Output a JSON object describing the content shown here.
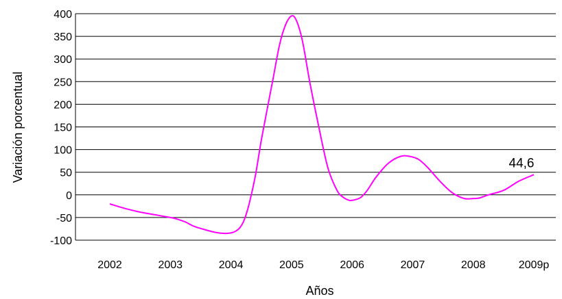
{
  "chart_data": {
    "type": "line",
    "title": "",
    "xlabel": "Años",
    "ylabel": "Variación porcentual",
    "ylim": [
      -100,
      400
    ],
    "yticks": [
      "400",
      "350",
      "300",
      "250",
      "200",
      "150",
      "100",
      "50",
      "0",
      "-50",
      "-100"
    ],
    "categories": [
      "2002",
      "2003",
      "2004",
      "2005",
      "2006",
      "2007",
      "2008",
      "2009p"
    ],
    "grid": "horizontal",
    "legend": "none",
    "series": [
      {
        "color": "#ff00ff",
        "x": [
          2002,
          2002.25,
          2002.5,
          2002.75,
          2003,
          2003.1,
          2003.25,
          2003.4,
          2003.6,
          2003.75,
          2003.9,
          2004,
          2004.08,
          2004.15,
          2004.22,
          2004.3,
          2004.4,
          2004.5,
          2004.6,
          2004.7,
          2004.8,
          2004.9,
          2005,
          2005.08,
          2005.18,
          2005.3,
          2005.45,
          2005.6,
          2005.75,
          2005.85,
          2005.95,
          2006,
          2006.07,
          2006.15,
          2006.25,
          2006.4,
          2006.6,
          2006.8,
          2006.95,
          2007.1,
          2007.25,
          2007.45,
          2007.65,
          2007.85,
          2008,
          2008.1,
          2008.25,
          2008.5,
          2008.75,
          2009
        ],
        "y": [
          -20,
          -30,
          -38,
          -44,
          -50,
          -53,
          -60,
          -70,
          -78,
          -83,
          -85,
          -84,
          -80,
          -72,
          -55,
          -20,
          40,
          120,
          190,
          260,
          330,
          375,
          395,
          385,
          340,
          250,
          150,
          60,
          10,
          -5,
          -12,
          -12,
          -10,
          -5,
          10,
          40,
          70,
          85,
          85,
          78,
          60,
          30,
          5,
          -8,
          -8,
          -7,
          0,
          10,
          30,
          44.6
        ]
      }
    ],
    "annotations": [
      {
        "text": "44,6",
        "x": 2009,
        "y": 44.6
      }
    ]
  }
}
